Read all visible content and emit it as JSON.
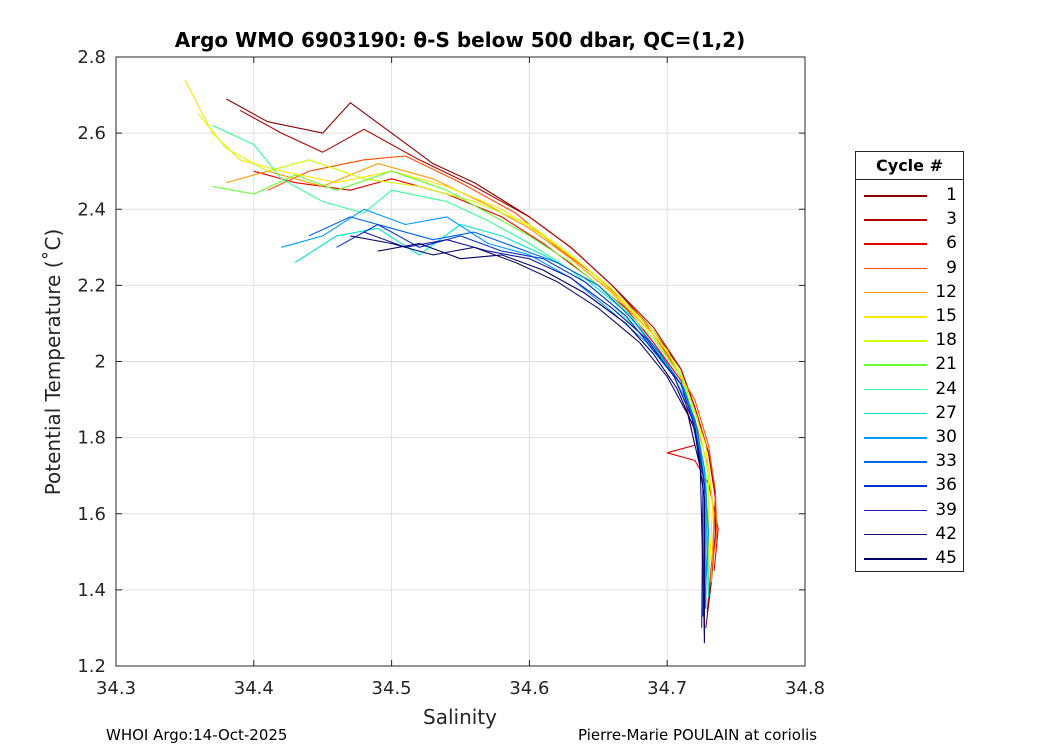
{
  "chart_data": {
    "type": "line",
    "title": "Argo WMO 6903190: θ-S below 500 dbar,  QC=(1,2)",
    "xlabel": "Salinity",
    "ylabel": "Potential Temperature (˚C)",
    "xlim": [
      34.3,
      34.8
    ],
    "ylim": [
      1.2,
      2.8
    ],
    "xticks": [
      "34.3",
      "34.4",
      "34.5",
      "34.6",
      "34.7",
      "34.8"
    ],
    "yticks": [
      "1.2",
      "1.4",
      "1.6",
      "1.8",
      "2",
      "2.2",
      "2.4",
      "2.6",
      "2.8"
    ],
    "grid": true,
    "legend": {
      "title": "Cycle #",
      "placement": "right-outside",
      "entries": [
        "1",
        "3",
        "6",
        "9",
        "12",
        "15",
        "18",
        "21",
        "24",
        "27",
        "30",
        "33",
        "36",
        "39",
        "42",
        "45"
      ],
      "colors": [
        "#8b0000",
        "#b30000",
        "#e60000",
        "#ff4d00",
        "#ff9900",
        "#ffe600",
        "#ccff00",
        "#66ff33",
        "#33ff99",
        "#00e6cc",
        "#0099ff",
        "#0066e6",
        "#0033cc",
        "#1a1aa6",
        "#101070",
        "#000066"
      ]
    },
    "series": [
      {
        "name": "1",
        "x": [
          34.38,
          34.41,
          34.45,
          34.47,
          34.5,
          34.53,
          34.56,
          34.6,
          34.63,
          34.66,
          34.69,
          34.71,
          34.72,
          34.73,
          34.735,
          34.735,
          34.732,
          34.728
        ],
        "y": [
          2.69,
          2.63,
          2.6,
          2.68,
          2.6,
          2.52,
          2.47,
          2.38,
          2.3,
          2.2,
          2.08,
          1.98,
          1.88,
          1.76,
          1.65,
          1.55,
          1.42,
          1.3
        ]
      },
      {
        "name": "3",
        "x": [
          34.39,
          34.42,
          34.45,
          34.48,
          34.52,
          34.56,
          34.6,
          34.63,
          34.66,
          34.69,
          34.71,
          34.72,
          34.73,
          34.735,
          34.733,
          34.729
        ],
        "y": [
          2.66,
          2.6,
          2.55,
          2.61,
          2.53,
          2.46,
          2.38,
          2.3,
          2.2,
          2.09,
          1.98,
          1.88,
          1.76,
          1.64,
          1.5,
          1.34
        ]
      },
      {
        "name": "6",
        "x": [
          34.4,
          34.43,
          34.47,
          34.5,
          34.54,
          34.58,
          34.61,
          34.64,
          34.67,
          34.69,
          34.71,
          34.72,
          34.7,
          34.72,
          34.73,
          34.737,
          34.734
        ],
        "y": [
          2.5,
          2.47,
          2.45,
          2.48,
          2.44,
          2.38,
          2.31,
          2.23,
          2.14,
          2.05,
          1.95,
          1.78,
          1.76,
          1.74,
          1.68,
          1.56,
          1.45
        ]
      },
      {
        "name": "9",
        "x": [
          34.41,
          34.44,
          34.48,
          34.51,
          34.55,
          34.59,
          34.62,
          34.65,
          34.68,
          34.7,
          34.72,
          34.73,
          34.735,
          34.736,
          34.73
        ],
        "y": [
          2.45,
          2.5,
          2.53,
          2.54,
          2.47,
          2.39,
          2.3,
          2.22,
          2.12,
          2.02,
          1.9,
          1.78,
          1.66,
          1.55,
          1.4
        ]
      },
      {
        "name": "12",
        "x": [
          34.38,
          34.41,
          34.45,
          34.49,
          34.53,
          34.57,
          34.6,
          34.63,
          34.66,
          34.69,
          34.71,
          34.72,
          34.73,
          34.734,
          34.732
        ],
        "y": [
          2.47,
          2.5,
          2.46,
          2.52,
          2.48,
          2.41,
          2.35,
          2.27,
          2.18,
          2.07,
          1.96,
          1.85,
          1.72,
          1.6,
          1.42
        ]
      },
      {
        "name": "15",
        "x": [
          34.35,
          34.37,
          34.39,
          34.42,
          34.46,
          34.5,
          34.54,
          34.58,
          34.61,
          34.64,
          34.67,
          34.7,
          34.715,
          34.728,
          34.733,
          34.73
        ],
        "y": [
          2.74,
          2.6,
          2.53,
          2.5,
          2.47,
          2.5,
          2.46,
          2.4,
          2.33,
          2.25,
          2.15,
          2.03,
          1.92,
          1.78,
          1.62,
          1.42
        ]
      },
      {
        "name": "18",
        "x": [
          34.36,
          34.38,
          34.41,
          34.44,
          34.48,
          34.52,
          34.56,
          34.6,
          34.63,
          34.66,
          34.69,
          34.71,
          34.722,
          34.73,
          34.73
        ],
        "y": [
          2.65,
          2.56,
          2.5,
          2.53,
          2.48,
          2.46,
          2.42,
          2.36,
          2.28,
          2.19,
          2.08,
          1.97,
          1.85,
          1.7,
          1.45
        ]
      },
      {
        "name": "21",
        "x": [
          34.37,
          34.4,
          34.43,
          34.46,
          34.5,
          34.54,
          34.57,
          34.6,
          34.63,
          34.66,
          34.69,
          34.71,
          34.72,
          34.728,
          34.73
        ],
        "y": [
          2.46,
          2.44,
          2.49,
          2.45,
          2.5,
          2.45,
          2.39,
          2.33,
          2.26,
          2.17,
          2.06,
          1.96,
          1.85,
          1.7,
          1.42
        ]
      },
      {
        "name": "24",
        "x": [
          34.37,
          34.4,
          34.42,
          34.45,
          34.48,
          34.5,
          34.54,
          34.57,
          34.6,
          34.63,
          34.66,
          34.69,
          34.71,
          34.72,
          34.728,
          34.73
        ],
        "y": [
          2.62,
          2.57,
          2.48,
          2.42,
          2.39,
          2.45,
          2.42,
          2.37,
          2.31,
          2.24,
          2.15,
          2.04,
          1.94,
          1.84,
          1.7,
          1.4
        ]
      },
      {
        "name": "27",
        "x": [
          34.43,
          34.46,
          34.49,
          34.52,
          34.55,
          34.58,
          34.61,
          34.64,
          34.67,
          34.69,
          34.71,
          34.72,
          34.728,
          34.73
        ],
        "y": [
          2.26,
          2.33,
          2.35,
          2.28,
          2.36,
          2.33,
          2.28,
          2.22,
          2.13,
          2.04,
          1.94,
          1.84,
          1.68,
          1.38
        ]
      },
      {
        "name": "30",
        "x": [
          34.42,
          34.45,
          34.48,
          34.51,
          34.54,
          34.57,
          34.6,
          34.63,
          34.66,
          34.685,
          34.705,
          34.72,
          34.727,
          34.73,
          34.727
        ],
        "y": [
          2.3,
          2.33,
          2.4,
          2.36,
          2.38,
          2.31,
          2.28,
          2.22,
          2.13,
          2.05,
          1.96,
          1.85,
          1.72,
          1.55,
          1.34
        ]
      },
      {
        "name": "33",
        "x": [
          34.44,
          34.47,
          34.5,
          34.53,
          34.56,
          34.59,
          34.62,
          34.65,
          34.675,
          34.695,
          34.712,
          34.722,
          34.728,
          34.728
        ],
        "y": [
          2.33,
          2.38,
          2.35,
          2.32,
          2.34,
          2.3,
          2.26,
          2.2,
          2.11,
          2.02,
          1.93,
          1.82,
          1.65,
          1.35
        ]
      },
      {
        "name": "36",
        "x": [
          34.46,
          34.49,
          34.52,
          34.55,
          34.58,
          34.61,
          34.64,
          34.67,
          34.69,
          34.71,
          34.72,
          34.727,
          34.726
        ],
        "y": [
          2.3,
          2.36,
          2.3,
          2.33,
          2.29,
          2.27,
          2.21,
          2.12,
          2.03,
          1.94,
          1.83,
          1.68,
          1.33
        ]
      },
      {
        "name": "39",
        "x": [
          34.48,
          34.51,
          34.54,
          34.57,
          34.6,
          34.63,
          34.66,
          34.685,
          34.705,
          34.718,
          34.726,
          34.725
        ],
        "y": [
          2.34,
          2.3,
          2.32,
          2.29,
          2.27,
          2.22,
          2.14,
          2.06,
          1.96,
          1.85,
          1.7,
          1.3
        ]
      },
      {
        "name": "42",
        "x": [
          34.47,
          34.5,
          34.53,
          34.56,
          34.59,
          34.62,
          34.65,
          34.68,
          34.7,
          34.715,
          34.724,
          34.727
        ],
        "y": [
          2.33,
          2.31,
          2.28,
          2.3,
          2.26,
          2.21,
          2.14,
          2.05,
          1.96,
          1.86,
          1.72,
          1.28
        ]
      },
      {
        "name": "45",
        "x": [
          34.49,
          34.52,
          34.55,
          34.58,
          34.61,
          34.64,
          34.67,
          34.69,
          34.707,
          34.72,
          34.727,
          34.727
        ],
        "y": [
          2.29,
          2.31,
          2.27,
          2.28,
          2.24,
          2.18,
          2.1,
          2.02,
          1.93,
          1.82,
          1.64,
          1.26
        ]
      }
    ]
  },
  "footer": {
    "left": "WHOI Argo:14-Oct-2025",
    "right": "Pierre-Marie POULAIN at coriolis"
  }
}
